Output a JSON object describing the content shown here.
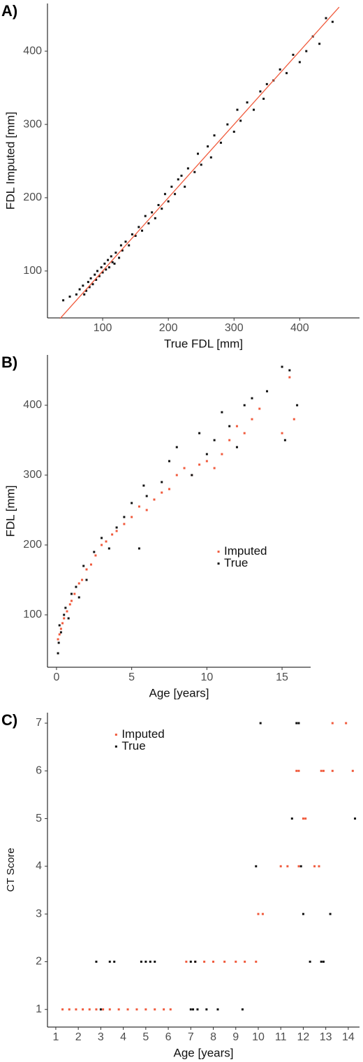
{
  "chart_data": [
    {
      "type": "scatter",
      "label": "A)",
      "xlabel": "True FDL [mm]",
      "ylabel": "FDL Imputed [mm]",
      "xlim": [
        16,
        491
      ],
      "ylim": [
        36,
        465
      ],
      "xticks": [
        100,
        200,
        300,
        400
      ],
      "yticks": [
        100,
        200,
        300,
        400
      ],
      "color": "#111111",
      "x": [
        40,
        50,
        60,
        65,
        70,
        72,
        75,
        78,
        80,
        82,
        85,
        88,
        90,
        92,
        95,
        98,
        100,
        103,
        105,
        108,
        110,
        113,
        115,
        118,
        120,
        125,
        128,
        130,
        135,
        140,
        145,
        150,
        155,
        160,
        165,
        170,
        175,
        180,
        185,
        190,
        195,
        200,
        205,
        210,
        215,
        220,
        225,
        230,
        240,
        245,
        250,
        260,
        265,
        270,
        280,
        290,
        300,
        305,
        310,
        320,
        330,
        340,
        345,
        350,
        360,
        370,
        380,
        390,
        400,
        410,
        420,
        430,
        440,
        450
      ],
      "values": [
        60,
        65,
        68,
        75,
        80,
        68,
        73,
        85,
        78,
        90,
        82,
        95,
        88,
        100,
        93,
        105,
        98,
        110,
        102,
        115,
        105,
        120,
        112,
        110,
        125,
        118,
        135,
        128,
        140,
        135,
        150,
        148,
        160,
        155,
        175,
        165,
        180,
        172,
        190,
        185,
        205,
        195,
        215,
        205,
        225,
        230,
        215,
        240,
        235,
        260,
        245,
        270,
        255,
        285,
        275,
        300,
        290,
        320,
        305,
        330,
        320,
        345,
        335,
        355,
        360,
        375,
        370,
        395,
        385,
        400,
        420,
        410,
        445,
        440
      ],
      "line": {
        "color": "#f05a3c",
        "x": [
          35,
          460
        ],
        "values": [
          35,
          460
        ]
      }
    },
    {
      "type": "scatter",
      "label": "B)",
      "xlabel": "Age [years]",
      "ylabel": "FDL [mm]",
      "xlim": [
        -0.6,
        16.9
      ],
      "ylim": [
        25,
        472
      ],
      "xticks": [
        0,
        5,
        10,
        15
      ],
      "yticks": [
        100,
        200,
        300,
        400
      ],
      "legend": "center-right",
      "series": [
        {
          "name": "Imputed",
          "color": "#f05a3c",
          "x": [
            0.1,
            0.2,
            0.3,
            0.4,
            0.5,
            0.7,
            0.9,
            1.0,
            1.2,
            1.5,
            1.7,
            2.0,
            2.3,
            2.6,
            3.0,
            3.3,
            3.7,
            4.0,
            4.5,
            5.0,
            5.5,
            6.0,
            6.5,
            7.0,
            7.5,
            8.0,
            8.5,
            9.0,
            9.5,
            10.0,
            10.5,
            11.0,
            11.5,
            12.0,
            12.5,
            13.0,
            13.5,
            15.0,
            15.5,
            15.8
          ],
          "values": [
            65,
            72,
            80,
            88,
            95,
            105,
            115,
            120,
            130,
            145,
            150,
            165,
            172,
            185,
            200,
            205,
            215,
            220,
            230,
            240,
            255,
            250,
            265,
            275,
            280,
            300,
            310,
            300,
            315,
            320,
            310,
            330,
            350,
            370,
            360,
            380,
            395,
            360,
            440,
            380
          ]
        },
        {
          "name": "True",
          "color": "#111111",
          "x": [
            0.1,
            0.15,
            0.2,
            0.3,
            0.5,
            0.6,
            0.8,
            1.0,
            1.3,
            1.5,
            1.8,
            2.0,
            2.5,
            3.0,
            3.5,
            4.0,
            4.5,
            5.0,
            5.5,
            5.8,
            6.0,
            7.0,
            7.5,
            8.0,
            9.0,
            9.5,
            10.0,
            10.5,
            11.0,
            11.5,
            12.0,
            12.5,
            13.0,
            14.0,
            15.0,
            15.2,
            15.5,
            16.0
          ],
          "values": [
            45,
            60,
            85,
            75,
            100,
            110,
            95,
            130,
            140,
            125,
            170,
            150,
            190,
            210,
            195,
            225,
            240,
            260,
            195,
            285,
            270,
            290,
            320,
            340,
            300,
            360,
            330,
            350,
            390,
            370,
            340,
            400,
            410,
            420,
            455,
            350,
            450,
            400
          ]
        }
      ]
    },
    {
      "type": "scatter",
      "label": "C)",
      "xlabel": "Age [years]",
      "ylabel": "CT Score",
      "xlim": [
        0.63,
        14.5
      ],
      "ylim": [
        0.63,
        7.22
      ],
      "xticks": [
        1,
        2,
        3,
        4,
        5,
        6,
        7,
        8,
        9,
        10,
        11,
        12,
        13,
        14
      ],
      "yticks": [
        1,
        2,
        3,
        4,
        5,
        6,
        7
      ],
      "legend": "upper-left",
      "series": [
        {
          "name": "Imputed",
          "color": "#f05a3c",
          "x": [
            1.3,
            1.6,
            1.9,
            2.2,
            2.5,
            2.8,
            3.1,
            3.4,
            3.8,
            4.2,
            4.6,
            5.0,
            5.4,
            5.8,
            6.1,
            6.8,
            7.2,
            7.6,
            8.0,
            8.5,
            9.0,
            9.4,
            9.9,
            10.0,
            10.2,
            11.0,
            11.3,
            11.8,
            12.5,
            12.7,
            12.0,
            12.1,
            11.7,
            11.8,
            12.8,
            12.9,
            13.3,
            14.2,
            13.3,
            13.9
          ],
          "values": [
            1,
            1,
            1,
            1,
            1,
            1,
            1,
            1,
            1,
            1,
            1,
            1,
            1,
            1,
            1,
            2,
            2,
            2,
            2,
            2,
            2,
            2,
            2,
            3,
            3,
            4,
            4,
            4,
            4,
            4,
            5,
            5,
            6,
            6,
            6,
            6,
            6,
            6,
            7,
            7
          ]
        },
        {
          "name": "True",
          "color": "#111111",
          "x": [
            3.0,
            7.0,
            7.1,
            7.3,
            7.7,
            8.2,
            9.3,
            2.8,
            3.4,
            3.6,
            4.8,
            5.0,
            5.2,
            5.4,
            7.0,
            7.2,
            12.3,
            12.8,
            12.9,
            12.0,
            13.2,
            9.9,
            11.9,
            11.5,
            14.3,
            10.1,
            11.7,
            11.8
          ],
          "values": [
            1,
            1,
            1,
            1,
            1,
            1,
            1,
            2,
            2,
            2,
            2,
            2,
            2,
            2,
            2,
            2,
            2,
            2,
            2,
            3,
            3,
            4,
            4,
            5,
            5,
            7,
            7,
            7
          ]
        }
      ]
    }
  ]
}
